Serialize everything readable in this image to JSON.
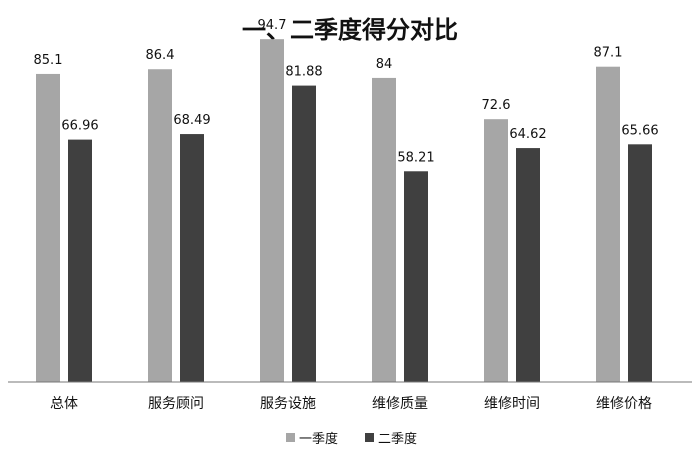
{
  "chart_data": {
    "type": "bar",
    "title": "一、二季度得分对比",
    "categories": [
      "总体",
      "服务顾问",
      "服务设施",
      "维修质量",
      "维修时间",
      "维修价格"
    ],
    "series": [
      {
        "name": "一季度",
        "values": [
          85.1,
          86.4,
          94.7,
          84,
          72.6,
          87.1
        ],
        "color": "#a6a6a6"
      },
      {
        "name": "二季度",
        "values": [
          66.96,
          68.49,
          81.88,
          58.21,
          64.62,
          65.66
        ],
        "color": "#404040"
      }
    ],
    "value_labels": [
      [
        "85.1",
        "86.4",
        "94.7",
        "84",
        "72.6",
        "87.1"
      ],
      [
        "66.96",
        "68.49",
        "81.88",
        "58.21",
        "64.62",
        "65.66"
      ]
    ],
    "ylim": [
      0,
      100
    ],
    "grid": false,
    "legend_position": "bottom",
    "xlabel": "",
    "ylabel": ""
  }
}
